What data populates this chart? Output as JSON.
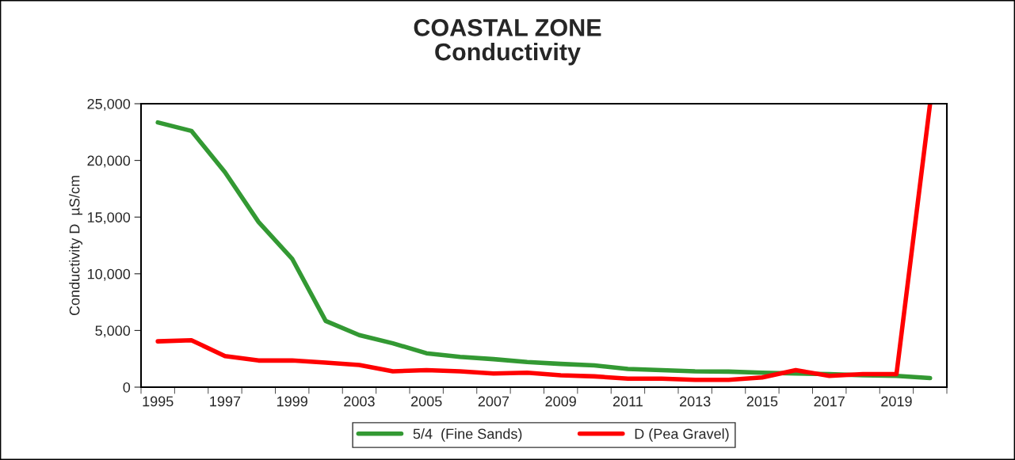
{
  "chart_data": {
    "type": "line",
    "title": "COASTAL ZONE\nConductivity",
    "ylabel": "Conductivity D  µS/cm",
    "categories": [
      "1995",
      null,
      "1997",
      null,
      "1999",
      null,
      "2003",
      null,
      "2005",
      null,
      "2007",
      null,
      "2009",
      null,
      "2011",
      null,
      "2013",
      null,
      "2015",
      null,
      "2017",
      null,
      "2019",
      null
    ],
    "series": [
      {
        "name": "5/4  (Fine Sands)",
        "color": "#339933",
        "values": [
          23350,
          22600,
          18960,
          14570,
          11330,
          5840,
          4590,
          3870,
          2990,
          2670,
          2470,
          2220,
          2050,
          1920,
          1600,
          1500,
          1400,
          1370,
          1270,
          1200,
          1150,
          1050,
          1000,
          800
        ]
      },
      {
        "name": "D (Pea Gravel)",
        "color": "#ff0000",
        "values": [
          4040,
          4140,
          2740,
          2350,
          2350,
          2170,
          1950,
          1400,
          1500,
          1400,
          1200,
          1270,
          1050,
          950,
          750,
          750,
          650,
          650,
          850,
          1500,
          1000,
          1150,
          1150,
          25000
        ]
      }
    ],
    "ylim": [
      0,
      25000
    ],
    "yticks": [
      {
        "value": 0,
        "label": "0"
      },
      {
        "value": 5000,
        "label": "5,000"
      },
      {
        "value": 10000,
        "label": "10,000"
      },
      {
        "value": 15000,
        "label": "15,000"
      },
      {
        "value": 20000,
        "label": "20,000"
      },
      {
        "value": 25000,
        "label": "25,000"
      }
    ],
    "legend": "bottom",
    "grid": false,
    "marker": "none",
    "line_style": "solid"
  }
}
